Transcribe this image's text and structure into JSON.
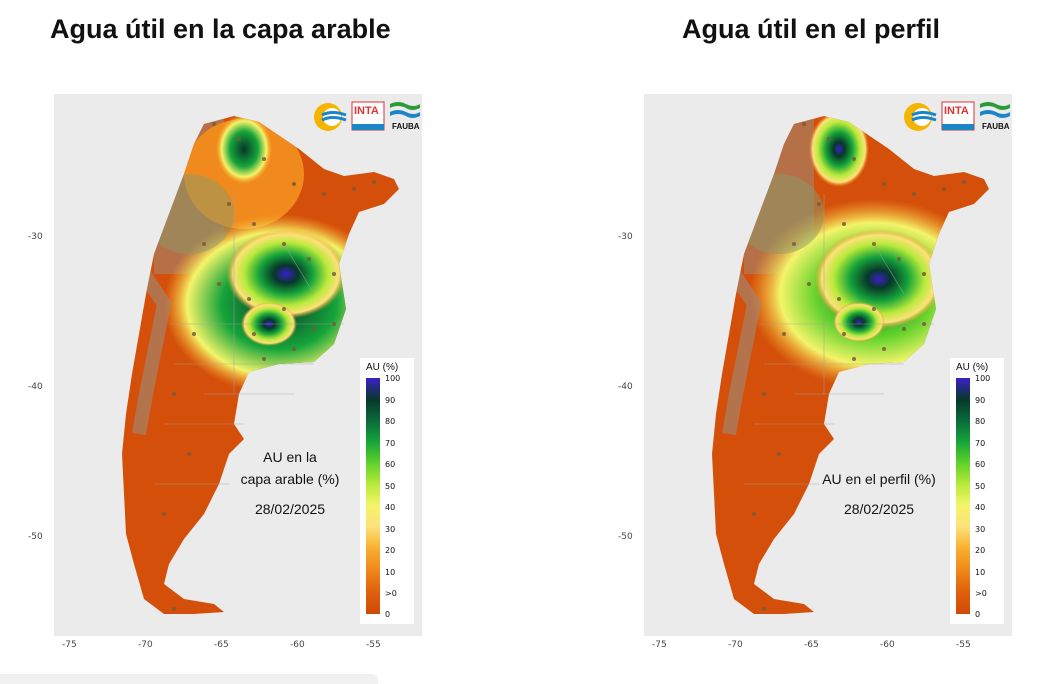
{
  "panels": [
    {
      "title": "Agua útil en la capa arable",
      "annotation_lines": [
        "AU en la",
        "capa arable (%)",
        "28/02/2025"
      ],
      "variant": "arable"
    },
    {
      "title": "Agua útil en el perfil",
      "annotation_lines": [
        "AU en el perfil (%)",
        "",
        "28/02/2025"
      ],
      "variant": "perfil"
    }
  ],
  "axes": {
    "x_ticks": [
      "-75",
      "-70",
      "-65",
      "-60",
      "-55"
    ],
    "y_ticks": [
      "-30",
      "-40",
      "-50"
    ]
  },
  "legend": {
    "title": "AU (%)",
    "labels": [
      "100",
      "90",
      "80",
      "70",
      "60",
      "50",
      "40",
      "30",
      "20",
      "10",
      ">0",
      "0"
    ],
    "colors": [
      "#3b1fc9",
      "#07372a",
      "#0a6a3a",
      "#16a43a",
      "#5ed12a",
      "#b8ea3a",
      "#f4f46a",
      "#fde17a",
      "#f8b030",
      "#f08a1c",
      "#e0620c",
      "#cf4a06"
    ]
  },
  "logos": {
    "inta_text": "INTA",
    "fauba_text": "FAUBA"
  },
  "colors": {
    "ocean_bg": "#ebebeb",
    "dry": "#d4500a",
    "neighbor": "#cfcfcf"
  }
}
